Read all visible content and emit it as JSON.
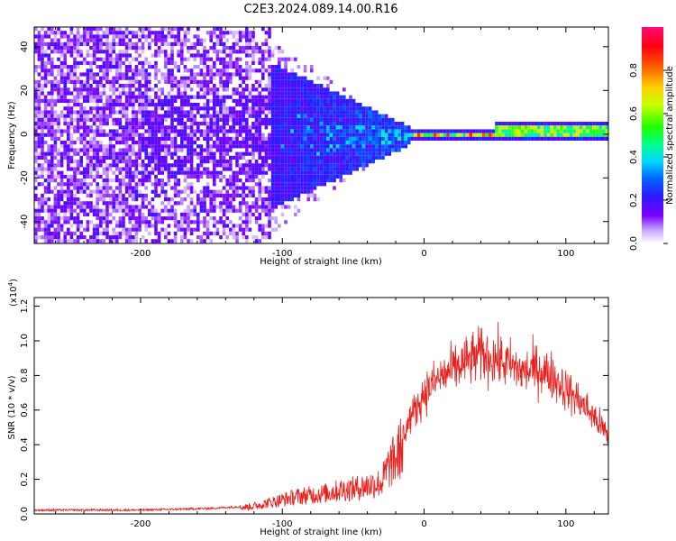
{
  "title": "C2E3.2024.089.14.00.R16",
  "chart_data": [
    {
      "type": "heatmap",
      "xlabel": "Height of straight line (km)",
      "ylabel": "Frequency (Hz)",
      "xlim": [
        -275,
        130
      ],
      "ylim": [
        -50,
        49
      ],
      "x_ticks": [
        -200,
        -100,
        0,
        100
      ],
      "x_tick_labels": [
        "-200",
        "-100",
        "0",
        "100"
      ],
      "y_ticks": [
        -40,
        -20,
        0,
        20,
        40
      ],
      "y_tick_labels": [
        "-40",
        "-20",
        "0",
        "20",
        "40"
      ],
      "colorbar": {
        "label": "Normalized spectral amplitude",
        "range": [
          0.0,
          1.0
        ],
        "ticks": [
          0.0,
          0.2,
          0.4,
          0.6,
          0.8
        ],
        "tick_labels": [
          "0.0",
          "0.2",
          "0.4",
          "0.6",
          "0.8"
        ]
      },
      "description_of_field": {
        "broadband_noise_region_km": [
          -275,
          -110
        ],
        "converging_band_region_km": [
          -110,
          -10
        ],
        "narrow_line_region_km": [
          -10,
          130
        ],
        "peak_amplitude_region_km": [
          0,
          50
        ],
        "line_frequency_hz": 0
      }
    },
    {
      "type": "line",
      "xlabel": "Height of straight line (km)",
      "ylabel": "SNR (10 * v/v)",
      "yscale_label": "(x10",
      "yscale_exponent": "4",
      "yscale_close": ")",
      "xlim": [
        -275,
        130
      ],
      "ylim": [
        0,
        1.25
      ],
      "x_ticks": [
        -200,
        -100,
        0,
        100
      ],
      "x_tick_labels": [
        "-200",
        "-100",
        "0",
        "100"
      ],
      "y_ticks": [
        0,
        0.2,
        0.4,
        0.6,
        0.8,
        1.0,
        1.2
      ],
      "y_tick_labels": [
        "0.0",
        "0.2",
        "0.4",
        "0.6",
        "0.8",
        "1.0",
        "1.2"
      ],
      "color": "#e8201e",
      "series": [
        {
          "x": [
            -275,
            -250,
            -225,
            -200,
            -175,
            -150,
            -130,
            -120,
            -110,
            -100,
            -90,
            -80,
            -70,
            -60,
            -50,
            -40,
            -30,
            -25,
            -20,
            -15,
            -10,
            -5,
            0,
            10,
            20,
            30,
            40,
            50,
            60,
            70,
            80,
            90,
            100,
            110,
            120,
            130
          ],
          "values": [
            0.02,
            0.02,
            0.02,
            0.02,
            0.025,
            0.03,
            0.04,
            0.05,
            0.07,
            0.09,
            0.11,
            0.12,
            0.13,
            0.15,
            0.16,
            0.18,
            0.2,
            0.3,
            0.35,
            0.45,
            0.55,
            0.62,
            0.7,
            0.78,
            0.83,
            0.88,
            0.92,
            0.9,
            0.86,
            0.82,
            0.84,
            0.8,
            0.72,
            0.65,
            0.56,
            0.45
          ]
        }
      ]
    }
  ]
}
